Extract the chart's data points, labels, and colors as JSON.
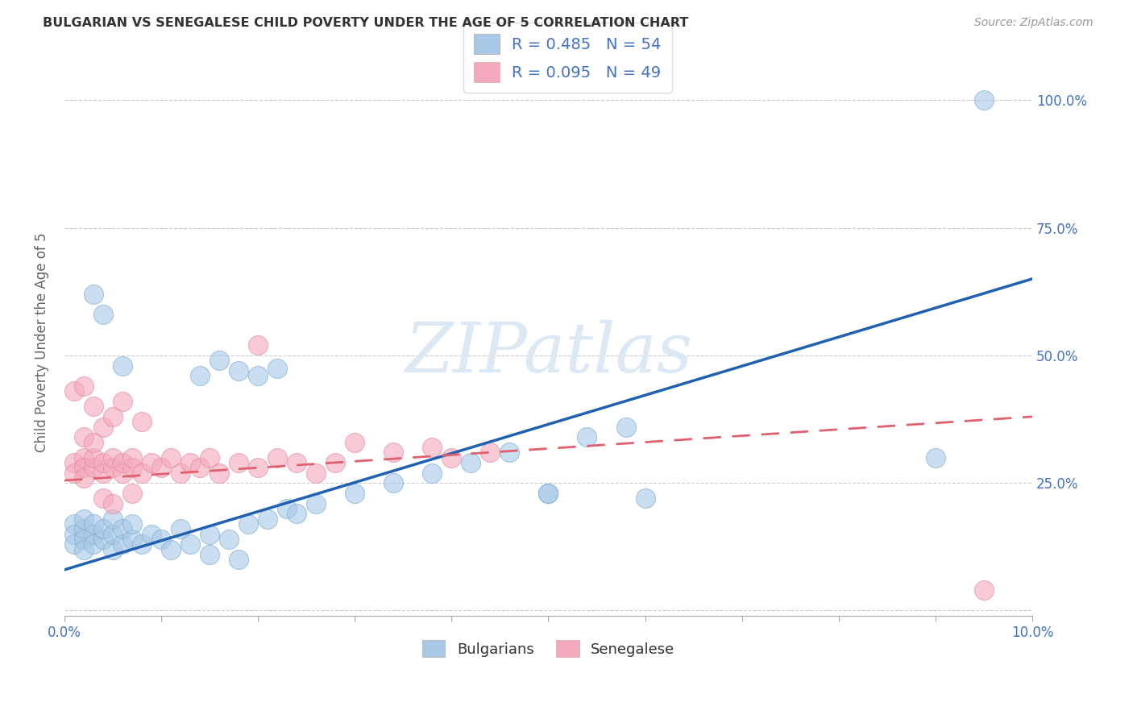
{
  "title": "BULGARIAN VS SENEGALESE CHILD POVERTY UNDER THE AGE OF 5 CORRELATION CHART",
  "source": "Source: ZipAtlas.com",
  "ylabel": "Child Poverty Under the Age of 5",
  "xlim": [
    0.0,
    0.1
  ],
  "ylim": [
    -0.01,
    1.06
  ],
  "yticks_right": [
    0.0,
    0.25,
    0.5,
    0.75,
    1.0
  ],
  "ytick_labels_right": [
    "",
    "25.0%",
    "50.0%",
    "75.0%",
    "100.0%"
  ],
  "blue_color": "#a8c8e8",
  "pink_color": "#f4a8bb",
  "blue_line_color": "#2060b0",
  "pink_line_color": "#e06070",
  "title_color": "#333333",
  "axis_label_color": "#666666",
  "right_axis_color": "#4472c4",
  "grid_color": "#c8c8c8",
  "watermark": "ZIPatlas",
  "watermark_color": "#dce8f4",
  "bulgarians_x": [
    0.001,
    0.001,
    0.001,
    0.002,
    0.002,
    0.002,
    0.002,
    0.003,
    0.003,
    0.003,
    0.004,
    0.004,
    0.005,
    0.005,
    0.005,
    0.006,
    0.006,
    0.007,
    0.007,
    0.008,
    0.009,
    0.01,
    0.011,
    0.012,
    0.013,
    0.015,
    0.017,
    0.019,
    0.021,
    0.023,
    0.014,
    0.016,
    0.018,
    0.02,
    0.022,
    0.024,
    0.026,
    0.03,
    0.034,
    0.038,
    0.042,
    0.046,
    0.05,
    0.054,
    0.058,
    0.003,
    0.004,
    0.006,
    0.015,
    0.018,
    0.05,
    0.06,
    0.09,
    0.095
  ],
  "bulgarians_y": [
    0.17,
    0.15,
    0.13,
    0.16,
    0.14,
    0.18,
    0.12,
    0.15,
    0.13,
    0.17,
    0.14,
    0.16,
    0.12,
    0.15,
    0.18,
    0.13,
    0.16,
    0.14,
    0.17,
    0.13,
    0.15,
    0.14,
    0.12,
    0.16,
    0.13,
    0.15,
    0.14,
    0.17,
    0.18,
    0.2,
    0.46,
    0.49,
    0.47,
    0.46,
    0.475,
    0.19,
    0.21,
    0.23,
    0.25,
    0.27,
    0.29,
    0.31,
    0.23,
    0.34,
    0.36,
    0.62,
    0.58,
    0.48,
    0.11,
    0.1,
    0.23,
    0.22,
    0.3,
    1.0
  ],
  "senegalese_x": [
    0.001,
    0.001,
    0.002,
    0.002,
    0.002,
    0.003,
    0.003,
    0.004,
    0.004,
    0.005,
    0.005,
    0.006,
    0.006,
    0.007,
    0.007,
    0.008,
    0.009,
    0.01,
    0.011,
    0.012,
    0.013,
    0.014,
    0.015,
    0.016,
    0.018,
    0.02,
    0.022,
    0.024,
    0.026,
    0.028,
    0.001,
    0.002,
    0.003,
    0.004,
    0.005,
    0.006,
    0.008,
    0.002,
    0.003,
    0.03,
    0.034,
    0.038,
    0.04,
    0.044,
    0.02,
    0.004,
    0.005,
    0.007,
    0.095
  ],
  "senegalese_y": [
    0.29,
    0.27,
    0.3,
    0.28,
    0.26,
    0.28,
    0.3,
    0.27,
    0.29,
    0.28,
    0.3,
    0.27,
    0.29,
    0.28,
    0.3,
    0.27,
    0.29,
    0.28,
    0.3,
    0.27,
    0.29,
    0.28,
    0.3,
    0.27,
    0.29,
    0.28,
    0.3,
    0.29,
    0.27,
    0.29,
    0.43,
    0.44,
    0.4,
    0.36,
    0.38,
    0.41,
    0.37,
    0.34,
    0.33,
    0.33,
    0.31,
    0.32,
    0.3,
    0.31,
    0.52,
    0.22,
    0.21,
    0.23,
    0.04
  ],
  "blue_trend_x": [
    0.0,
    0.1
  ],
  "blue_trend_y": [
    0.08,
    0.65
  ],
  "pink_trend_x": [
    0.0,
    0.1
  ],
  "pink_trend_y": [
    0.255,
    0.38
  ]
}
